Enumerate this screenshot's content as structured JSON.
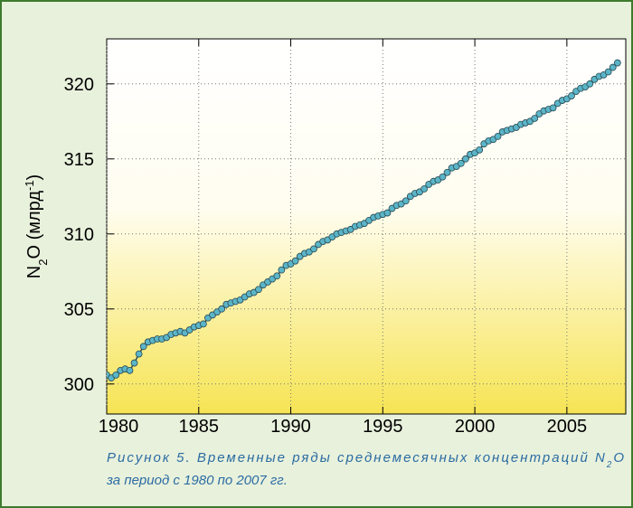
{
  "chart_data": {
    "type": "line",
    "ylabel_parts": [
      {
        "text": "N"
      },
      {
        "text": "2",
        "sub": true
      },
      {
        "text": "O (млрд"
      },
      {
        "text": "-1",
        "sup": true
      },
      {
        "text": ")"
      }
    ],
    "caption_line1": [
      {
        "text": "Рисунок 5. Временные ряды среднемесячных концентраций N"
      },
      {
        "text": "2",
        "sub": true
      },
      {
        "text": "O"
      }
    ],
    "caption_line2": "за период с 1980 по 2007 гг.",
    "xlim": [
      1980,
      2008.2
    ],
    "ylim": [
      298,
      323
    ],
    "xticks": [
      1980,
      1985,
      1990,
      1995,
      2000,
      2005
    ],
    "yticks": [
      300,
      305,
      310,
      315,
      320
    ],
    "grid": true,
    "x": [
      1980,
      1980.25,
      1980.5,
      1980.75,
      1981,
      1981.25,
      1981.5,
      1981.75,
      1982,
      1982.25,
      1982.5,
      1982.75,
      1983,
      1983.25,
      1983.5,
      1983.75,
      1984,
      1984.25,
      1984.5,
      1984.75,
      1985,
      1985.25,
      1985.5,
      1985.75,
      1986,
      1986.25,
      1986.5,
      1986.75,
      1987,
      1987.25,
      1987.5,
      1987.75,
      1988,
      1988.25,
      1988.5,
      1988.75,
      1989,
      1989.25,
      1989.5,
      1989.75,
      1990,
      1990.25,
      1990.5,
      1990.75,
      1991,
      1991.25,
      1991.5,
      1991.75,
      1992,
      1992.25,
      1992.5,
      1992.75,
      1993,
      1993.25,
      1993.5,
      1993.75,
      1994,
      1994.25,
      1994.5,
      1994.75,
      1995,
      1995.25,
      1995.5,
      1995.75,
      1996,
      1996.25,
      1996.5,
      1996.75,
      1997,
      1997.25,
      1997.5,
      1997.75,
      1998,
      1998.25,
      1998.5,
      1998.75,
      1999,
      1999.25,
      1999.5,
      1999.75,
      2000,
      2000.25,
      2000.5,
      2000.75,
      2001,
      2001.25,
      2001.5,
      2001.75,
      2002,
      2002.25,
      2002.5,
      2002.75,
      2003,
      2003.25,
      2003.5,
      2003.75,
      2004,
      2004.25,
      2004.5,
      2004.75,
      2005,
      2005.25,
      2005.5,
      2005.75,
      2006,
      2006.25,
      2006.5,
      2006.75,
      2007,
      2007.25,
      2007.5,
      2007.75
    ],
    "series": [
      {
        "color": "#5bb5c8",
        "line_color": "#2a4a52",
        "values": [
          300.6,
          300.4,
          300.6,
          300.9,
          301.0,
          300.9,
          301.4,
          302.0,
          302.5,
          302.8,
          302.9,
          303.0,
          303.0,
          303.1,
          303.3,
          303.4,
          303.5,
          303.4,
          303.6,
          303.8,
          303.9,
          304.0,
          304.4,
          304.6,
          304.8,
          305.0,
          305.3,
          305.4,
          305.5,
          305.6,
          305.8,
          306.0,
          306.1,
          306.3,
          306.6,
          306.8,
          307.0,
          307.2,
          307.6,
          307.9,
          308.0,
          308.2,
          308.5,
          308.7,
          308.8,
          309.0,
          309.3,
          309.5,
          309.6,
          309.8,
          310.0,
          310.1,
          310.2,
          310.3,
          310.5,
          310.6,
          310.7,
          310.9,
          311.1,
          311.2,
          311.3,
          311.4,
          311.7,
          311.9,
          312.0,
          312.2,
          312.5,
          312.7,
          312.8,
          313.0,
          313.3,
          313.5,
          313.6,
          313.8,
          314.1,
          314.4,
          314.5,
          314.7,
          315.0,
          315.3,
          315.4,
          315.6,
          316.0,
          316.2,
          316.3,
          316.5,
          316.8,
          316.9,
          317.0,
          317.1,
          317.3,
          317.4,
          317.5,
          317.7,
          318.0,
          318.2,
          318.3,
          318.4,
          318.7,
          318.9,
          319.0,
          319.2,
          319.5,
          319.7,
          319.8,
          320.0,
          320.3,
          320.5,
          320.6,
          320.8,
          321.1,
          321.4
        ]
      }
    ]
  }
}
